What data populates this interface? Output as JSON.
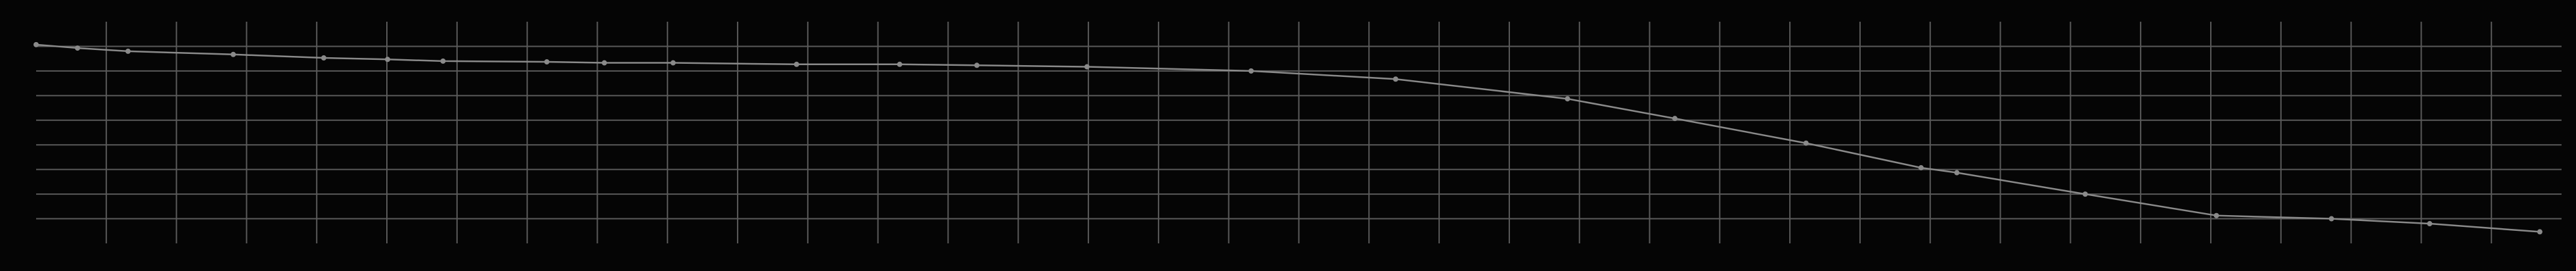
{
  "chart_data": {
    "type": "line",
    "x": [
      0,
      0.59,
      1.31,
      2.81,
      4.1,
      5.01,
      5.8,
      7.28,
      8.1,
      9.08,
      10.84,
      12.31,
      13.41,
      14.98,
      17.32,
      19.38,
      21.83,
      23.36,
      25.23,
      26.87,
      27.38,
      29.21,
      31.08,
      32.72,
      34.12,
      35.69
    ],
    "series": [
      {
        "color": "#8a8a8a",
        "values": [
          8.07,
          7.93,
          7.8,
          7.67,
          7.53,
          7.47,
          7.4,
          7.37,
          7.33,
          7.33,
          7.27,
          7.27,
          7.23,
          7.17,
          7.0,
          6.67,
          5.87,
          5.07,
          4.07,
          3.07,
          2.87,
          2.0,
          1.13,
          1.0,
          0.8,
          0.47
        ]
      }
    ],
    "xlim": [
      0,
      36
    ],
    "xticks": [
      1,
      2,
      3,
      4,
      5,
      6,
      7,
      8,
      9,
      10,
      11,
      12,
      13,
      14,
      15,
      16,
      17,
      18,
      19,
      20,
      21,
      22,
      23,
      24,
      25,
      26,
      27,
      28,
      29,
      30,
      31,
      32,
      33,
      34,
      35
    ],
    "ylim": [
      0,
      9
    ],
    "yticks": [
      1,
      2,
      3,
      4,
      5,
      6,
      7,
      8
    ],
    "grid": true,
    "markers": true
  }
}
